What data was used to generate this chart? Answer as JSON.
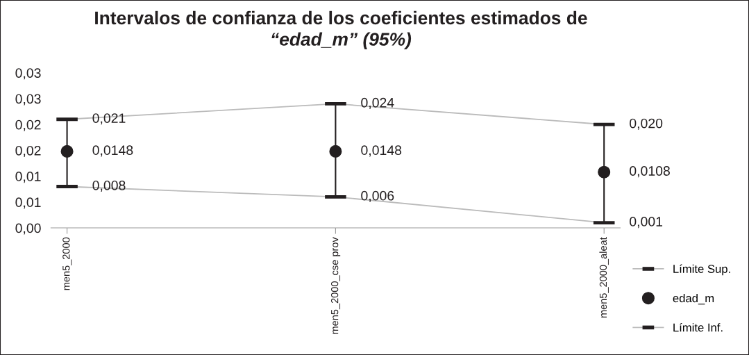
{
  "chart_data": {
    "type": "line",
    "title": "Intervalos de confianza de los coeficientes estimados de\n“edad_m” (95%)",
    "categories": [
      "men5_2000",
      "men5_2000_cse prov",
      "men5_2000_aleat"
    ],
    "series": [
      {
        "name": "Límite Sup.",
        "color": "#bbbbbb",
        "values": [
          0.021,
          0.024,
          0.02
        ],
        "value_labels": [
          "0,021",
          "0,024",
          "0,020"
        ]
      },
      {
        "name": "edad_m",
        "type": "scatter",
        "color": "#231f20",
        "marker": "circle",
        "values": [
          0.0148,
          0.0148,
          0.0108
        ],
        "value_labels": [
          "0,0148",
          "0,0148",
          "0,0108"
        ],
        "errors": [
          [
            0.008,
            0.021
          ],
          [
            0.006,
            0.024
          ],
          [
            0.001,
            0.02
          ]
        ]
      },
      {
        "name": "Límite Inf.",
        "color": "#bbbbbb",
        "values": [
          0.008,
          0.006,
          0.001
        ],
        "value_labels": [
          "0,008",
          "0,006",
          "0,001"
        ]
      }
    ],
    "ylim": [
      0,
      0.03
    ],
    "yticks": [
      {
        "value": 0,
        "label": "0,00"
      },
      {
        "value": 0.005,
        "label": "0,01"
      },
      {
        "value": 0.01,
        "label": "0,01"
      },
      {
        "value": 0.015,
        "label": "0,02"
      },
      {
        "value": 0.02,
        "label": "0,02"
      },
      {
        "value": 0.025,
        "label": "0,03"
      },
      {
        "value": 0.03,
        "label": "0,03"
      }
    ],
    "grid": false,
    "legend": "bottom right"
  }
}
